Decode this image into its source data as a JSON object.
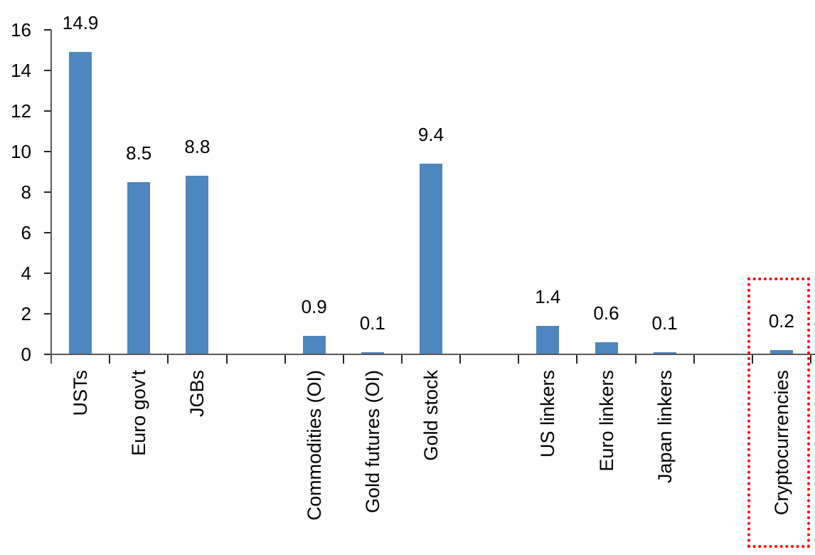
{
  "chart_data": {
    "type": "bar",
    "title": "",
    "xlabel": "",
    "ylabel": "",
    "categories": [
      "USTs",
      "Euro gov't",
      "JGBs",
      "",
      "Commodities (OI)",
      "Gold futures (OI)",
      "Gold stock",
      "",
      "US linkers",
      "Euro linkers",
      "Japan linkers",
      "",
      "Cryptocurrencies"
    ],
    "values": [
      14.9,
      8.5,
      8.8,
      null,
      0.9,
      0.1,
      9.4,
      null,
      1.4,
      0.6,
      0.1,
      null,
      0.2
    ],
    "value_labels": [
      "14.9",
      "8.5",
      "8.8",
      null,
      "0.9",
      "0.1",
      "9.4",
      null,
      "1.4",
      "0.6",
      "0.1",
      null,
      "0.2"
    ],
    "ylim": [
      0,
      16
    ],
    "yticks": [
      0,
      2,
      4,
      6,
      8,
      10,
      12,
      14,
      16
    ],
    "grid": false,
    "legend": null,
    "bar_color": "#4E86BE",
    "axis_color": "#595959",
    "tick_color": "#262626",
    "text_color": "#000000",
    "highlight": {
      "category_index": 12,
      "label": "Cryptocurrencies",
      "box_color": "#FF0000",
      "box_style": "dotted"
    }
  }
}
